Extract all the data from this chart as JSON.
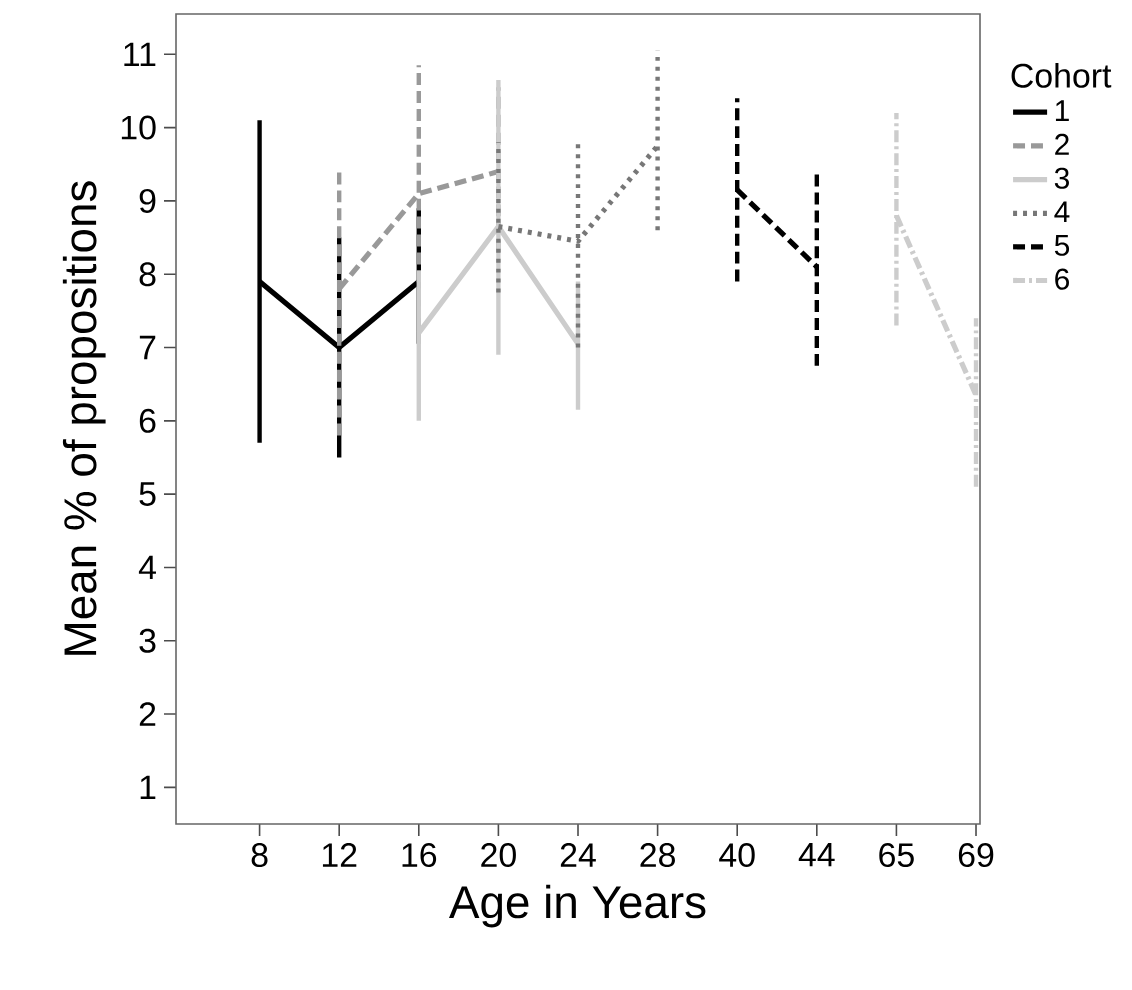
{
  "chart_data": {
    "type": "line",
    "xlabel": "Age in Years",
    "ylabel": "Mean % of propositions",
    "legend_title": "Cohort",
    "categories": [
      "8",
      "12",
      "16",
      "20",
      "24",
      "28",
      "40",
      "44",
      "65",
      "69"
    ],
    "ylim": [
      0.5,
      11.55
    ],
    "yticks": [
      1,
      2,
      3,
      4,
      5,
      6,
      7,
      8,
      9,
      10,
      11
    ],
    "grid": false,
    "legend": "right",
    "marker": "none",
    "series": [
      {
        "name": "1",
        "color": "#000000",
        "line_style": "solid",
        "values": [
          7.9,
          7.0,
          7.9,
          null,
          null,
          null,
          null,
          null,
          null,
          null
        ],
        "errors": [
          [
            5.7,
            10.1
          ],
          [
            5.5,
            8.5
          ],
          [
            7.05,
            8.9
          ],
          null,
          null,
          null,
          null,
          null,
          null,
          null
        ]
      },
      {
        "name": "2",
        "color": "#999999",
        "line_style": "dashed",
        "values": [
          null,
          7.8,
          9.1,
          9.4,
          null,
          null,
          null,
          null,
          null,
          null
        ],
        "errors": [
          null,
          [
            5.8,
            9.4
          ],
          [
            7.4,
            10.85
          ],
          [
            8.3,
            10.55
          ],
          null,
          null,
          null,
          null,
          null,
          null
        ]
      },
      {
        "name": "3",
        "color": "#cccccc",
        "line_style": "solid",
        "values": [
          null,
          null,
          7.2,
          8.65,
          7.05,
          null,
          null,
          null,
          null,
          null
        ],
        "errors": [
          null,
          null,
          [
            6.0,
            8.05
          ],
          [
            6.9,
            10.65
          ],
          [
            6.15,
            7.9
          ],
          null,
          null,
          null,
          null,
          null
        ]
      },
      {
        "name": "4",
        "color": "#777777",
        "line_style": "dotted",
        "values": [
          null,
          null,
          null,
          8.65,
          8.45,
          9.75,
          null,
          null,
          null,
          null
        ],
        "errors": [
          null,
          null,
          null,
          [
            7.75,
            9.8
          ],
          [
            7.0,
            9.85
          ],
          [
            8.6,
            11.05
          ],
          null,
          null,
          null,
          null
        ]
      },
      {
        "name": "5",
        "color": "#000000",
        "line_style": "dashed",
        "values": [
          null,
          null,
          null,
          null,
          null,
          null,
          9.15,
          8.1,
          null,
          null
        ],
        "errors": [
          null,
          null,
          null,
          null,
          null,
          null,
          [
            7.9,
            10.4
          ],
          [
            6.75,
            9.4
          ],
          null,
          null
        ]
      },
      {
        "name": "6",
        "color": "#cccccc",
        "line_style": "dashdotted",
        "values": [
          null,
          null,
          null,
          null,
          null,
          null,
          null,
          null,
          8.8,
          6.35
        ],
        "errors": [
          null,
          null,
          null,
          null,
          null,
          null,
          null,
          null,
          [
            7.3,
            10.2
          ],
          [
            5.1,
            7.4
          ]
        ]
      }
    ]
  }
}
